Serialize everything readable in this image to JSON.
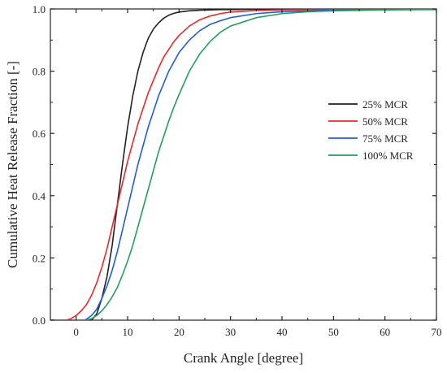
{
  "chart_data": {
    "type": "line",
    "xlabel": "Crank Angle [degree]",
    "ylabel": "Cumulative Heat Release Fraction [-]",
    "xlim": [
      -5,
      70
    ],
    "ylim": [
      0,
      1.0
    ],
    "xticks": [
      0,
      10,
      20,
      30,
      40,
      50,
      60,
      70
    ],
    "yticks": [
      0.0,
      0.2,
      0.4,
      0.6,
      0.8,
      1.0
    ],
    "ytick_labels": [
      "0.0",
      "0.2",
      "0.4",
      "0.6",
      "0.8",
      "1.0"
    ],
    "grid": false,
    "legend_position": "right-center",
    "series": [
      {
        "name": "25% MCR",
        "color": "#222222",
        "x": [
          -5,
          3,
          4,
          5,
          6,
          7,
          8,
          9,
          10,
          11,
          12,
          13,
          14,
          15,
          16,
          17,
          18,
          19,
          20,
          22,
          24,
          26,
          28,
          30,
          35,
          40,
          50,
          60,
          70
        ],
        "y": [
          0,
          0,
          0.02,
          0.07,
          0.14,
          0.24,
          0.37,
          0.5,
          0.62,
          0.72,
          0.8,
          0.86,
          0.905,
          0.935,
          0.955,
          0.97,
          0.98,
          0.986,
          0.99,
          0.994,
          0.996,
          0.997,
          0.998,
          0.998,
          0.999,
          0.999,
          1.0,
          1.0,
          1.0
        ]
      },
      {
        "name": "50% MCR",
        "color": "#e8282b",
        "x": [
          -5,
          -2,
          -1,
          0,
          1,
          2,
          3,
          4,
          5,
          6,
          7,
          8,
          9,
          10,
          11,
          12,
          13,
          14,
          15,
          16,
          17,
          18,
          19,
          20,
          22,
          24,
          26,
          28,
          30,
          35,
          40,
          50,
          60,
          70
        ],
        "y": [
          0,
          0,
          0.005,
          0.015,
          0.03,
          0.05,
          0.08,
          0.12,
          0.17,
          0.23,
          0.3,
          0.37,
          0.44,
          0.51,
          0.57,
          0.63,
          0.68,
          0.73,
          0.77,
          0.81,
          0.845,
          0.87,
          0.895,
          0.915,
          0.945,
          0.965,
          0.977,
          0.985,
          0.99,
          0.995,
          0.997,
          0.998,
          0.999,
          1.0
        ]
      },
      {
        "name": "75% MCR",
        "color": "#1f5fd1",
        "x": [
          -5,
          1.5,
          2,
          3,
          4,
          5,
          6,
          7,
          8,
          9,
          10,
          11,
          12,
          13,
          14,
          15,
          16,
          17,
          18,
          19,
          20,
          22,
          24,
          26,
          28,
          30,
          35,
          40,
          50,
          60,
          70
        ],
        "y": [
          0,
          0,
          0.003,
          0.015,
          0.035,
          0.07,
          0.11,
          0.16,
          0.22,
          0.29,
          0.36,
          0.43,
          0.5,
          0.56,
          0.62,
          0.67,
          0.72,
          0.76,
          0.8,
          0.83,
          0.86,
          0.9,
          0.93,
          0.95,
          0.962,
          0.972,
          0.985,
          0.991,
          0.996,
          0.998,
          0.999
        ]
      },
      {
        "name": "100% MCR",
        "color": "#22a05a",
        "x": [
          -5,
          2,
          3,
          4,
          5,
          6,
          7,
          8,
          9,
          10,
          11,
          12,
          13,
          14,
          15,
          16,
          17,
          18,
          19,
          20,
          22,
          24,
          26,
          28,
          30,
          35,
          40,
          45,
          50,
          60,
          70
        ],
        "y": [
          0,
          0,
          0.005,
          0.015,
          0.03,
          0.05,
          0.075,
          0.105,
          0.145,
          0.19,
          0.24,
          0.3,
          0.36,
          0.42,
          0.48,
          0.54,
          0.59,
          0.64,
          0.685,
          0.725,
          0.8,
          0.855,
          0.895,
          0.925,
          0.945,
          0.972,
          0.985,
          0.991,
          0.994,
          0.997,
          0.998
        ]
      }
    ]
  }
}
